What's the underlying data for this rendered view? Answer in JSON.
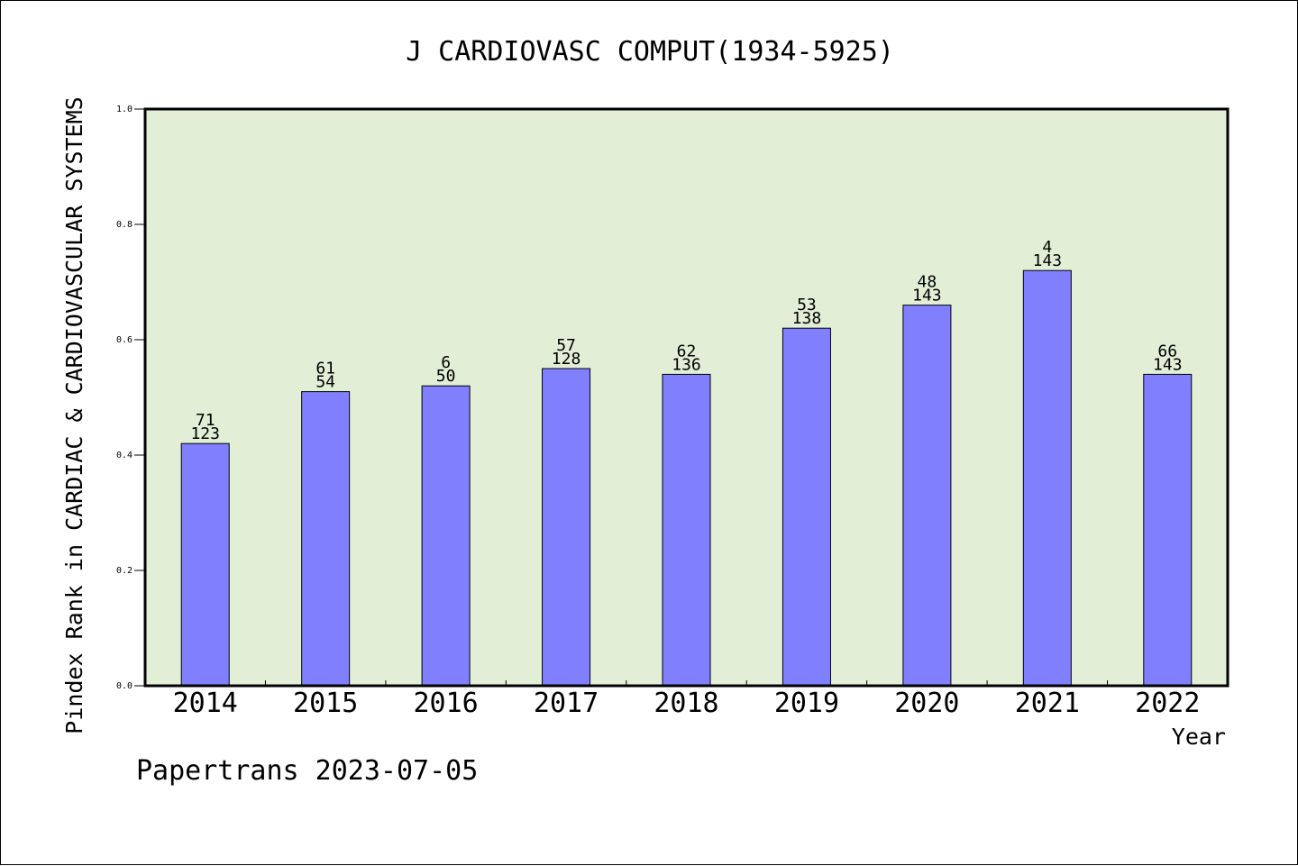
{
  "chart_data": {
    "type": "bar",
    "title": "J CARDIOVASC COMPUT(1934-5925)",
    "xlabel": "Year",
    "ylabel": "Pindex Rank in CARDIAC & CARDIOVASCULAR SYSTEMS",
    "categories": [
      "2014",
      "2015",
      "2016",
      "2017",
      "2018",
      "2019",
      "2020",
      "2021",
      "2022"
    ],
    "values": [
      0.42,
      0.51,
      0.52,
      0.55,
      0.54,
      0.62,
      0.66,
      0.72,
      0.54
    ],
    "rank_labels": [
      "71",
      "61",
      "6",
      "57",
      "62",
      "53",
      "48",
      "4",
      "66"
    ],
    "total_labels": [
      "123",
      "54",
      "50",
      "128",
      "136",
      "138",
      "143",
      "143",
      "143"
    ],
    "ylim": [
      0,
      1.0
    ],
    "yticks": [
      "0.0",
      "0.2",
      "0.4",
      "0.6",
      "0.8",
      "1.0"
    ],
    "grid": false,
    "colors": {
      "bar": "#8080ff",
      "plot_background": "#e2efd6",
      "axis": "#000000"
    }
  },
  "footer": "Papertrans 2023-07-05"
}
